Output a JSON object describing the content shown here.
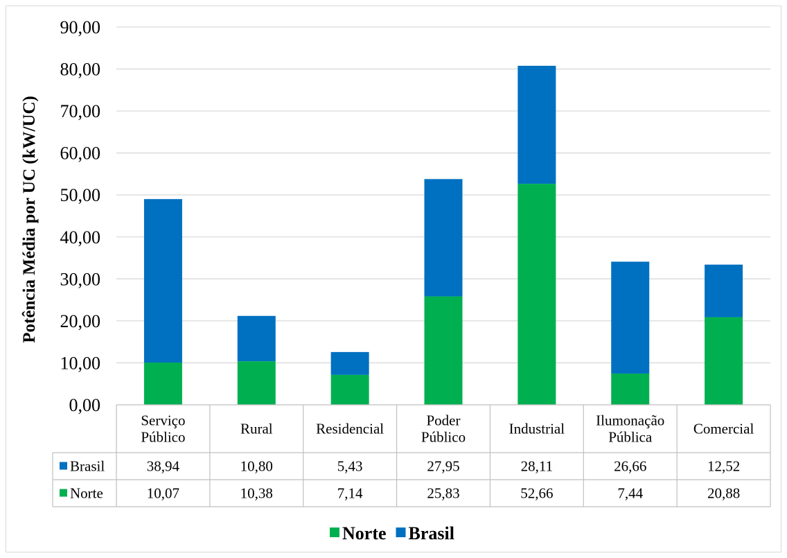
{
  "chart_data": {
    "type": "bar",
    "stacked": true,
    "ylabel": "Potência Média por UC (kW/UC)",
    "xlabel": "",
    "ylim": [
      0,
      90
    ],
    "yticks": [
      "0,00",
      "10,00",
      "20,00",
      "30,00",
      "40,00",
      "50,00",
      "60,00",
      "70,00",
      "80,00",
      "90,00"
    ],
    "grid": true,
    "legend_position": "bottom",
    "categories": [
      [
        "Serviço",
        "Público"
      ],
      [
        "Rural"
      ],
      [
        "Residencial"
      ],
      [
        "Poder",
        "Público"
      ],
      [
        "Industrial"
      ],
      [
        "Ilumonação",
        "Pública"
      ],
      [
        "Comercial"
      ]
    ],
    "series": [
      {
        "name": "Norte",
        "color": "#00b050",
        "values": [
          10.07,
          10.38,
          7.14,
          25.83,
          52.66,
          7.44,
          20.88
        ],
        "labels": [
          "10,07",
          "10,38",
          "7,14",
          "25,83",
          "52,66",
          "7,44",
          "20,88"
        ]
      },
      {
        "name": "Brasil",
        "color": "#0070c0",
        "values": [
          38.94,
          10.8,
          5.43,
          27.95,
          28.11,
          26.66,
          12.52
        ],
        "labels": [
          "38,94",
          "10,80",
          "5,43",
          "27,95",
          "28,11",
          "26,66",
          "12,52"
        ]
      }
    ],
    "table_rows_order": [
      "Brasil",
      "Norte"
    ]
  }
}
